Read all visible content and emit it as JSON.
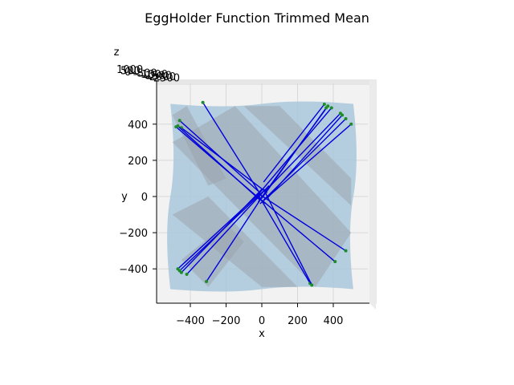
{
  "chart_data": {
    "type": "3d-surface-with-paths",
    "title": "EggHolder Function Trimmed Mean",
    "xlabel": "x",
    "ylabel": "y",
    "zlabel": "z",
    "view": "top-down",
    "xlim": [
      -600,
      600
    ],
    "ylim": [
      -600,
      600
    ],
    "x_ticks": [
      -400,
      -200,
      0,
      200,
      400
    ],
    "y_ticks": [
      -400,
      -200,
      0,
      200,
      400
    ],
    "z_ticks_visible": [
      "1000",
      "500",
      "0",
      "-500",
      "-1000",
      "-1500",
      "-2000",
      "-2500"
    ],
    "surface_color": "#aac8dc",
    "path_color": "#0000dd",
    "endpoint_color": "#1e8c28",
    "paths": [
      {
        "from": [
          -450,
          380
        ],
        "to": [
          30,
          20
        ]
      },
      {
        "from": [
          -470,
          390
        ],
        "to": [
          -10,
          -20
        ]
      },
      {
        "from": [
          -480,
          385
        ],
        "to": [
          20,
          -40
        ]
      },
      {
        "from": [
          -460,
          420
        ],
        "to": [
          -20,
          30
        ]
      },
      {
        "from": [
          -330,
          520
        ],
        "to": [
          0,
          0
        ]
      },
      {
        "from": [
          -470,
          -400
        ],
        "to": [
          -10,
          20
        ]
      },
      {
        "from": [
          -460,
          -410
        ],
        "to": [
          20,
          40
        ]
      },
      {
        "from": [
          -420,
          -430
        ],
        "to": [
          40,
          60
        ]
      },
      {
        "from": [
          -310,
          -470
        ],
        "to": [
          10,
          10
        ]
      },
      {
        "from": [
          -450,
          -420
        ],
        "to": [
          0,
          40
        ]
      },
      {
        "from": [
          350,
          510
        ],
        "to": [
          10,
          80
        ]
      },
      {
        "from": [
          370,
          500
        ],
        "to": [
          -20,
          -30
        ]
      },
      {
        "from": [
          360,
          490
        ],
        "to": [
          0,
          -10
        ]
      },
      {
        "from": [
          390,
          490
        ],
        "to": [
          -30,
          0
        ]
      },
      {
        "from": [
          440,
          460
        ],
        "to": [
          20,
          30
        ]
      },
      {
        "from": [
          470,
          430
        ],
        "to": [
          10,
          -20
        ]
      },
      {
        "from": [
          500,
          400
        ],
        "to": [
          -10,
          -40
        ]
      },
      {
        "from": [
          450,
          450
        ],
        "to": [
          30,
          -10
        ]
      },
      {
        "from": [
          470,
          -300
        ],
        "to": [
          -10,
          10
        ]
      },
      {
        "from": [
          410,
          -360
        ],
        "to": [
          0,
          -20
        ]
      },
      {
        "from": [
          270,
          -480
        ],
        "to": [
          -20,
          10
        ]
      },
      {
        "from": [
          280,
          -490
        ],
        "to": [
          10,
          40
        ]
      }
    ]
  }
}
